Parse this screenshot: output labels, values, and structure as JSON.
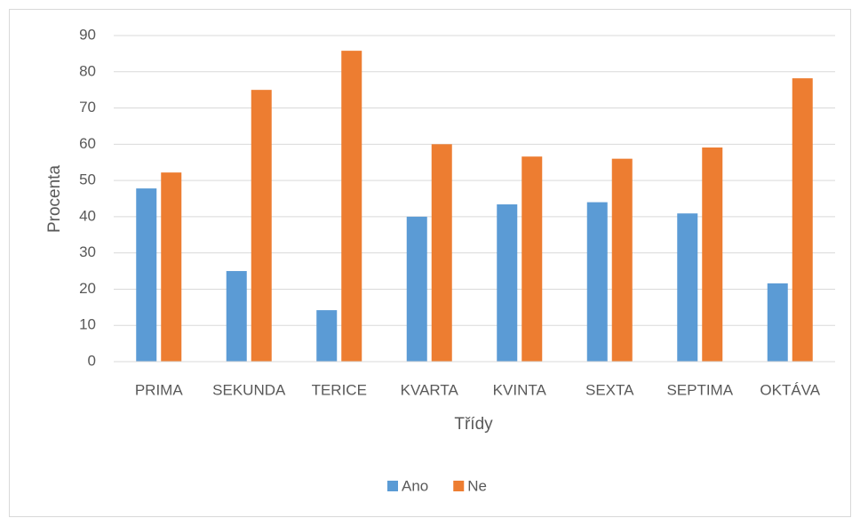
{
  "chart_data": {
    "type": "bar",
    "categories": [
      "PRIMA",
      "SEKUNDA",
      "TERICE",
      "KVARTA",
      "KVINTA",
      "SEXTA",
      "SEPTIMA",
      "OKTÁVA"
    ],
    "series": [
      {
        "name": "Ano",
        "color": "#5b9bd5",
        "values": [
          47.8,
          25,
          14.2,
          40,
          43.4,
          44,
          40.9,
          21.6
        ]
      },
      {
        "name": "Ne",
        "color": "#ed7d31",
        "values": [
          52.2,
          75,
          85.8,
          60,
          56.6,
          56,
          59.1,
          78.2
        ]
      }
    ],
    "x_label": "Třídy",
    "y_label": "Procenta",
    "ylim": [
      0,
      90
    ],
    "yticks": [
      0,
      10,
      20,
      30,
      40,
      50,
      60,
      70,
      80,
      90
    ],
    "grid": true,
    "legend": "bottom"
  }
}
